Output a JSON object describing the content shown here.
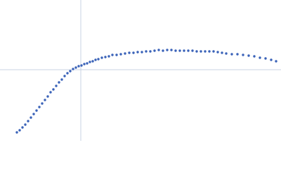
{
  "chart_data": {
    "type": "scatter",
    "color": "#3a62b8",
    "crosshair_color": "#c8d3e3",
    "xlim": [
      0,
      400
    ],
    "ylim": [
      0,
      200
    ],
    "crosshair": {
      "x": 115,
      "y": 101
    },
    "x": [
      24,
      28,
      32,
      36,
      40,
      44,
      48,
      52,
      56,
      60,
      64,
      68,
      72,
      76,
      80,
      84,
      88,
      92,
      96,
      100,
      104,
      108,
      112,
      116,
      120,
      124,
      128,
      132,
      136,
      140,
      145,
      150,
      155,
      160,
      166,
      172,
      178,
      184,
      190,
      196,
      202,
      208,
      214,
      220,
      226,
      232,
      238,
      244,
      250,
      256,
      262,
      268,
      274,
      280,
      286,
      292,
      298,
      304,
      310,
      316,
      322,
      330,
      338,
      346,
      354,
      362,
      370,
      378,
      386,
      393
    ],
    "values": [
      12,
      15,
      19,
      23,
      28,
      33,
      38,
      43,
      48,
      53,
      58,
      63,
      69,
      73,
      78,
      83,
      87,
      92,
      96,
      99,
      102,
      104,
      106,
      107,
      109,
      110,
      112,
      113,
      115,
      116,
      118,
      119,
      120,
      122,
      122,
      123,
      124,
      125,
      125,
      126,
      126,
      127,
      127,
      128,
      129,
      128,
      129,
      129,
      128,
      128,
      128,
      128,
      128,
      127,
      127,
      127,
      127,
      127,
      126,
      125,
      124,
      123,
      123,
      122,
      121,
      120,
      118,
      117,
      115,
      113
    ]
  }
}
